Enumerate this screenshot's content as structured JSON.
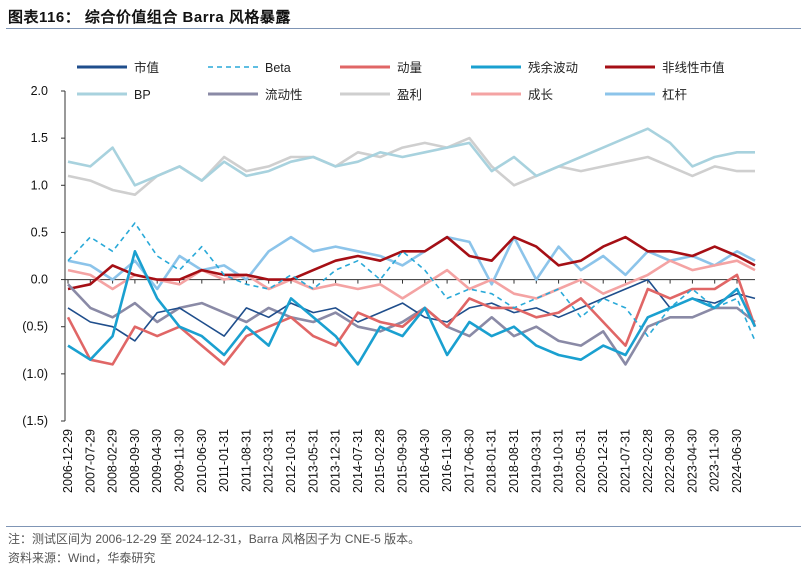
{
  "title": "图表116： 综合价值组合 Barra 风格暴露",
  "footnote": "注：测试区间为 2006-12-29 至 2024-12-31，Barra 风格因子为 CNE-5 版本。",
  "source": "资料来源：Wind，华泰研究",
  "chart_data": {
    "type": "line",
    "title": "",
    "xlabel": "",
    "ylabel": "",
    "ylim": [
      -1.5,
      2.0
    ],
    "y_ticks": [
      "2.0",
      "1.5",
      "1.0",
      "0.5",
      "0.0",
      "(0.5)",
      "(1.0)",
      "(1.5)"
    ],
    "x_ticks": [
      "2006-12-29",
      "2007-07-29",
      "2008-02-29",
      "2008-09-30",
      "2009-04-30",
      "2009-11-30",
      "2010-06-30",
      "2011-01-31",
      "2011-08-31",
      "2012-03-31",
      "2012-10-31",
      "2013-05-31",
      "2013-12-31",
      "2014-07-31",
      "2015-02-28",
      "2015-09-30",
      "2016-04-30",
      "2016-11-30",
      "2017-06-30",
      "2018-01-31",
      "2018-08-31",
      "2019-03-31",
      "2019-10-31",
      "2020-05-31",
      "2020-12-31",
      "2021-07-31",
      "2022-02-28",
      "2022-09-30",
      "2023-04-30",
      "2023-11-30",
      "2024-06-30"
    ],
    "x": [
      "2006-12-29",
      "2007-07-29",
      "2008-02-29",
      "2008-09-30",
      "2009-04-30",
      "2009-11-30",
      "2010-06-30",
      "2011-01-31",
      "2011-08-31",
      "2012-03-31",
      "2012-10-31",
      "2013-05-31",
      "2013-12-31",
      "2014-07-31",
      "2015-02-28",
      "2015-09-30",
      "2016-04-30",
      "2016-11-30",
      "2017-06-30",
      "2018-01-31",
      "2018-08-31",
      "2019-03-31",
      "2019-10-31",
      "2020-05-31",
      "2020-12-31",
      "2021-07-31",
      "2022-02-28",
      "2022-09-30",
      "2023-04-30",
      "2023-11-30",
      "2024-06-30",
      "2024-12-31"
    ],
    "grid": false,
    "legend": "top",
    "series": [
      {
        "name": "市值",
        "color": "#1f4e8c",
        "dash": false,
        "values": [
          -0.3,
          -0.45,
          -0.5,
          -0.65,
          -0.35,
          -0.3,
          -0.45,
          -0.6,
          -0.3,
          -0.4,
          -0.25,
          -0.35,
          -0.3,
          -0.45,
          -0.35,
          -0.25,
          -0.4,
          -0.45,
          -0.3,
          -0.25,
          -0.35,
          -0.3,
          -0.4,
          -0.3,
          -0.2,
          -0.1,
          0.0,
          -0.3,
          -0.2,
          -0.25,
          -0.15,
          -0.2
        ]
      },
      {
        "name": "Beta",
        "color": "#29a9d8",
        "dash": true,
        "values": [
          0.2,
          0.45,
          0.3,
          0.6,
          0.25,
          0.1,
          0.35,
          0.05,
          -0.05,
          -0.1,
          0.05,
          -0.1,
          0.1,
          0.2,
          0.0,
          0.3,
          0.1,
          -0.2,
          -0.1,
          -0.15,
          -0.3,
          -0.2,
          -0.1,
          -0.4,
          -0.2,
          -0.3,
          -0.6,
          -0.3,
          -0.1,
          -0.3,
          -0.2,
          -0.65
        ]
      },
      {
        "name": "动量",
        "color": "#e06666",
        "dash": false,
        "values": [
          -0.4,
          -0.85,
          -0.9,
          -0.5,
          -0.6,
          -0.5,
          -0.7,
          -0.9,
          -0.6,
          -0.5,
          -0.4,
          -0.6,
          -0.7,
          -0.35,
          -0.45,
          -0.5,
          -0.3,
          -0.5,
          -0.2,
          -0.3,
          -0.3,
          -0.4,
          -0.35,
          -0.2,
          -0.45,
          -0.7,
          -0.1,
          -0.2,
          -0.1,
          -0.1,
          0.05,
          -0.5
        ]
      },
      {
        "name": "残余波动",
        "color": "#1aa0d0",
        "dash": false,
        "values": [
          -0.7,
          -0.85,
          -0.6,
          0.3,
          -0.2,
          -0.5,
          -0.6,
          -0.8,
          -0.5,
          -0.7,
          -0.2,
          -0.4,
          -0.6,
          -0.9,
          -0.5,
          -0.6,
          -0.3,
          -0.8,
          -0.45,
          -0.6,
          -0.5,
          -0.7,
          -0.8,
          -0.85,
          -0.7,
          -0.8,
          -0.4,
          -0.3,
          -0.2,
          -0.3,
          -0.1,
          -0.5
        ]
      },
      {
        "name": "非线性市值",
        "color": "#a50f15",
        "dash": false,
        "values": [
          -0.1,
          -0.05,
          0.15,
          0.05,
          0.0,
          0.0,
          0.1,
          0.05,
          0.05,
          0.0,
          0.0,
          0.1,
          0.2,
          0.25,
          0.2,
          0.3,
          0.3,
          0.45,
          0.25,
          0.2,
          0.45,
          0.35,
          0.15,
          0.2,
          0.35,
          0.45,
          0.3,
          0.3,
          0.25,
          0.35,
          0.25,
          0.15
        ]
      },
      {
        "name": "BP",
        "color": "#a8d2de",
        "dash": false,
        "values": [
          1.25,
          1.2,
          1.4,
          1.0,
          1.1,
          1.2,
          1.05,
          1.25,
          1.1,
          1.15,
          1.25,
          1.3,
          1.2,
          1.25,
          1.35,
          1.3,
          1.35,
          1.4,
          1.45,
          1.15,
          1.3,
          1.1,
          1.2,
          1.3,
          1.4,
          1.5,
          1.6,
          1.45,
          1.2,
          1.3,
          1.35,
          1.35
        ]
      },
      {
        "name": "流动性",
        "color": "#8a8aa6",
        "dash": false,
        "values": [
          -0.05,
          -0.3,
          -0.4,
          -0.25,
          -0.45,
          -0.3,
          -0.25,
          -0.35,
          -0.45,
          -0.3,
          -0.4,
          -0.45,
          -0.35,
          -0.5,
          -0.55,
          -0.45,
          -0.3,
          -0.5,
          -0.6,
          -0.4,
          -0.6,
          -0.5,
          -0.65,
          -0.7,
          -0.55,
          -0.9,
          -0.5,
          -0.4,
          -0.4,
          -0.3,
          -0.3,
          -0.45
        ]
      },
      {
        "name": "盈利",
        "color": "#cfcfcf",
        "dash": false,
        "values": [
          1.1,
          1.05,
          0.95,
          0.9,
          1.1,
          1.2,
          1.05,
          1.3,
          1.15,
          1.2,
          1.3,
          1.3,
          1.2,
          1.35,
          1.3,
          1.4,
          1.45,
          1.4,
          1.5,
          1.2,
          1.0,
          1.1,
          1.2,
          1.15,
          1.2,
          1.25,
          1.3,
          1.2,
          1.1,
          1.2,
          1.15,
          1.15
        ]
      },
      {
        "name": "成长",
        "color": "#f4a3a3",
        "dash": false,
        "values": [
          0.1,
          0.05,
          -0.1,
          0.05,
          0.0,
          -0.05,
          0.1,
          0.0,
          0.05,
          -0.1,
          0.0,
          -0.1,
          -0.05,
          -0.1,
          -0.05,
          -0.2,
          -0.05,
          0.1,
          -0.1,
          0.0,
          -0.15,
          -0.2,
          -0.1,
          0.0,
          -0.15,
          -0.05,
          0.05,
          0.2,
          0.1,
          0.15,
          0.2,
          0.1
        ]
      },
      {
        "name": "杠杆",
        "color": "#8cc4ea",
        "dash": false,
        "values": [
          0.2,
          0.15,
          0.0,
          0.2,
          -0.1,
          0.25,
          0.1,
          0.15,
          0.0,
          0.3,
          0.45,
          0.3,
          0.35,
          0.3,
          0.25,
          0.15,
          0.3,
          0.45,
          0.4,
          -0.05,
          0.45,
          0.0,
          0.35,
          0.1,
          0.25,
          0.05,
          0.3,
          0.2,
          0.25,
          0.15,
          0.3,
          0.2
        ]
      }
    ]
  }
}
